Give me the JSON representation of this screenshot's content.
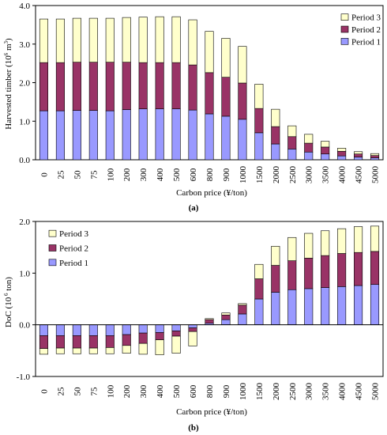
{
  "colors": {
    "period1": "#9999ff",
    "period2": "#993366",
    "period3": "#ffffcc",
    "outline": "#000000"
  },
  "chart_data": [
    {
      "type": "bar",
      "stacked": true,
      "panel_label": "(a)",
      "xlabel": "Carbon price (¥/ton)",
      "ylabel_parts": {
        "main": "Harvested timber (10",
        "exp": "6",
        "unit": " m",
        "exp2": "3",
        "close": ")"
      },
      "ylim": [
        0,
        4
      ],
      "yticks": [
        "0.0",
        "1.0",
        "2.0",
        "3.0",
        "4.0"
      ],
      "ytick_values": [
        0,
        1,
        2,
        3,
        4
      ],
      "grid": false,
      "legend_position": "top-right",
      "legend_order": [
        "Period 3",
        "Period 2",
        "Period 1"
      ],
      "categories": [
        "0",
        "25",
        "50",
        "75",
        "100",
        "200",
        "300",
        "400",
        "500",
        "600",
        "800",
        "900",
        "1000",
        "1500",
        "2000",
        "2500",
        "3000",
        "3500",
        "4000",
        "4500",
        "5000"
      ],
      "series": [
        {
          "name": "Period 1",
          "values": [
            1.27,
            1.27,
            1.28,
            1.28,
            1.27,
            1.3,
            1.32,
            1.32,
            1.32,
            1.29,
            1.19,
            1.13,
            1.05,
            0.7,
            0.41,
            0.28,
            0.2,
            0.15,
            0.1,
            0.07,
            0.05
          ]
        },
        {
          "name": "Period 2",
          "values": [
            1.25,
            1.25,
            1.25,
            1.25,
            1.26,
            1.23,
            1.2,
            1.2,
            1.2,
            1.17,
            1.07,
            1.01,
            0.94,
            0.63,
            0.45,
            0.32,
            0.23,
            0.18,
            0.12,
            0.08,
            0.06
          ]
        },
        {
          "name": "Period 3",
          "values": [
            1.13,
            1.13,
            1.14,
            1.14,
            1.14,
            1.16,
            1.18,
            1.19,
            1.19,
            1.17,
            1.07,
            1.01,
            0.95,
            0.63,
            0.45,
            0.28,
            0.23,
            0.15,
            0.08,
            0.06,
            0.05
          ]
        }
      ]
    },
    {
      "type": "bar",
      "stacked": true,
      "panel_label": "(b)",
      "xlabel": "Carbon price (¥/ton)",
      "ylabel_parts": {
        "main": "DoC (10",
        "exp": " 6",
        "unit": " ton)",
        "exp2": "",
        "close": ""
      },
      "ylim": [
        -1,
        2
      ],
      "yticks": [
        "-1.0",
        "0.0",
        "1.0",
        "2.0"
      ],
      "ytick_values": [
        -1,
        0,
        1,
        2
      ],
      "grid": false,
      "legend_position": "top-left",
      "legend_order": [
        "Period 3",
        "Period 2",
        "Period 1"
      ],
      "categories": [
        "0",
        "25",
        "50",
        "75",
        "100",
        "200",
        "300",
        "400",
        "500",
        "600",
        "800",
        "900",
        "1000",
        "1500",
        "2000",
        "2500",
        "3000",
        "3500",
        "4000",
        "4500",
        "5000"
      ],
      "series": [
        {
          "name": "Period 1",
          "values": [
            -0.21,
            -0.21,
            -0.21,
            -0.21,
            -0.21,
            -0.19,
            -0.16,
            -0.15,
            -0.12,
            -0.06,
            0.03,
            0.1,
            0.21,
            0.5,
            0.63,
            0.68,
            0.7,
            0.72,
            0.74,
            0.76,
            0.78
          ]
        },
        {
          "name": "Period 2",
          "values": [
            -0.25,
            -0.24,
            -0.24,
            -0.24,
            -0.23,
            -0.21,
            -0.2,
            -0.14,
            -0.1,
            -0.07,
            0.07,
            0.09,
            0.17,
            0.39,
            0.52,
            0.56,
            0.59,
            0.62,
            0.64,
            0.64,
            0.64
          ]
        },
        {
          "name": "Period 3",
          "values": [
            -0.11,
            -0.11,
            -0.11,
            -0.11,
            -0.12,
            -0.15,
            -0.21,
            -0.29,
            -0.33,
            -0.28,
            0.02,
            0.04,
            0.03,
            0.28,
            0.37,
            0.45,
            0.48,
            0.48,
            0.48,
            0.5,
            0.49
          ]
        }
      ]
    }
  ]
}
